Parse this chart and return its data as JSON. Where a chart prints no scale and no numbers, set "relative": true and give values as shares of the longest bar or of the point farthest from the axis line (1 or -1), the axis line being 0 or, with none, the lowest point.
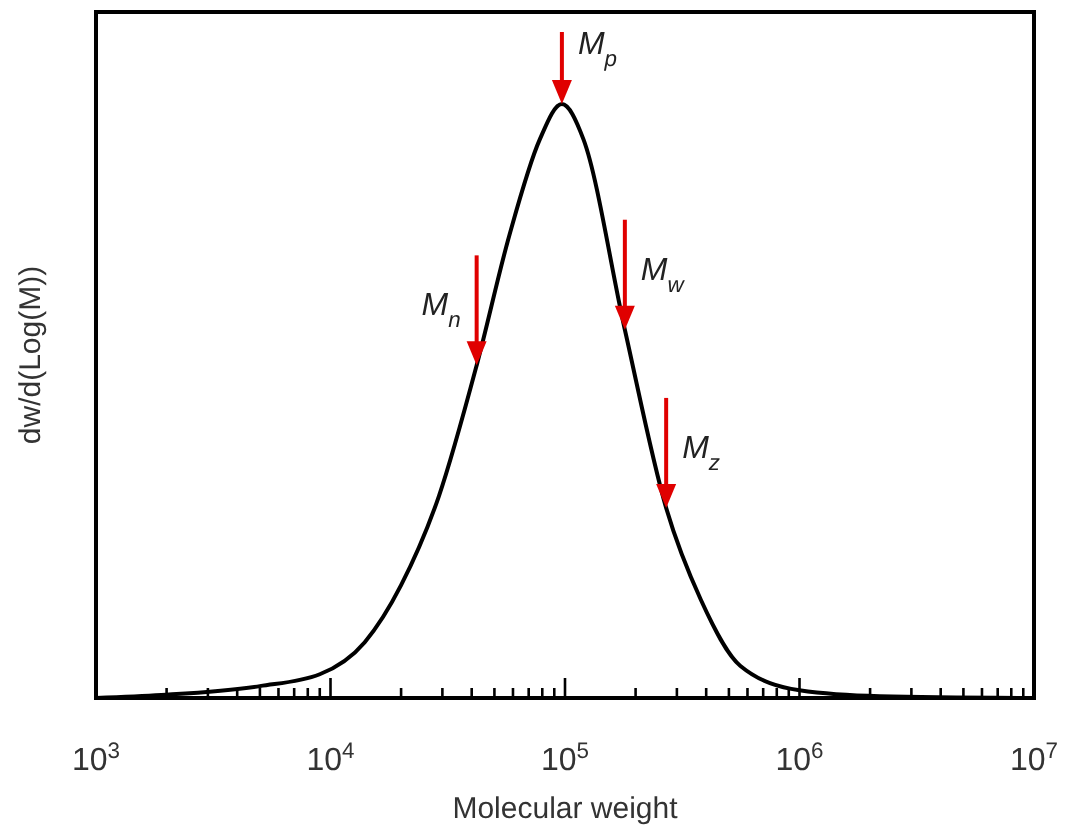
{
  "chart_data": {
    "type": "line",
    "relative": true,
    "log": "x",
    "xlabel": "Molecular weight",
    "ylabel": "dw/d(Log(M))",
    "x": [
      1000,
      1900,
      5000,
      9000,
      14000,
      20000,
      29000,
      42000,
      58000,
      78000,
      97000,
      120000,
      180000,
      270000,
      380000,
      560000,
      1000000,
      2200000,
      10000000
    ],
    "series": [
      {
        "color": "#000000",
        "values": [
          0,
          0.005,
          0.02,
          0.04,
          0.094,
          0.19,
          0.34,
          0.56,
          0.78,
          0.94,
          1,
          0.94,
          0.62,
          0.32,
          0.165,
          0.054,
          0.013,
          0.003,
          0
        ]
      }
    ],
    "xlim": [
      1000,
      10000000
    ],
    "xticks": [
      {
        "value": 1000,
        "label": "10$^{3}$"
      },
      {
        "value": 2000,
        "label": null
      },
      {
        "value": 3000,
        "label": null
      },
      {
        "value": 4000,
        "label": null
      },
      {
        "value": 5000,
        "label": null
      },
      {
        "value": 6000,
        "label": null
      },
      {
        "value": 7000,
        "label": null
      },
      {
        "value": 8000,
        "label": null
      },
      {
        "value": 9000,
        "label": null
      },
      {
        "value": 10000,
        "label": "10$^{4}$"
      },
      {
        "value": 20000,
        "label": null
      },
      {
        "value": 30000,
        "label": null
      },
      {
        "value": 40000,
        "label": null
      },
      {
        "value": 50000,
        "label": null
      },
      {
        "value": 60000,
        "label": null
      },
      {
        "value": 70000,
        "label": null
      },
      {
        "value": 80000,
        "label": null
      },
      {
        "value": 90000,
        "label": null
      },
      {
        "value": 100000,
        "label": "10$^{5}$"
      },
      {
        "value": 200000,
        "label": null
      },
      {
        "value": 300000,
        "label": null
      },
      {
        "value": 400000,
        "label": null
      },
      {
        "value": 500000,
        "label": null
      },
      {
        "value": 600000,
        "label": null
      },
      {
        "value": 700000,
        "label": null
      },
      {
        "value": 800000,
        "label": null
      },
      {
        "value": 900000,
        "label": null
      },
      {
        "value": 1000000,
        "label": "10$^{6}$"
      },
      {
        "value": 2000000,
        "label": null
      },
      {
        "value": 3000000,
        "label": null
      },
      {
        "value": 4000000,
        "label": null
      },
      {
        "value": 5000000,
        "label": null
      },
      {
        "value": 6000000,
        "label": null
      },
      {
        "value": 7000000,
        "label": null
      },
      {
        "value": 8000000,
        "label": null
      },
      {
        "value": 9000000,
        "label": null
      },
      {
        "value": 10000000,
        "label": "10$^{7}$"
      }
    ],
    "annotations": [
      {
        "text": "M$_{n}$",
        "x": 42000,
        "y": 0.56
      },
      {
        "text": "M$_{p}$",
        "x": 97000,
        "y": 1
      },
      {
        "text": "M$_{w}$",
        "x": 180000,
        "y": 0.62
      },
      {
        "text": "M$_{z}$",
        "x": 270000,
        "y": 0.32
      }
    ],
    "marker": "none",
    "line_style": "solid",
    "grid": false
  }
}
